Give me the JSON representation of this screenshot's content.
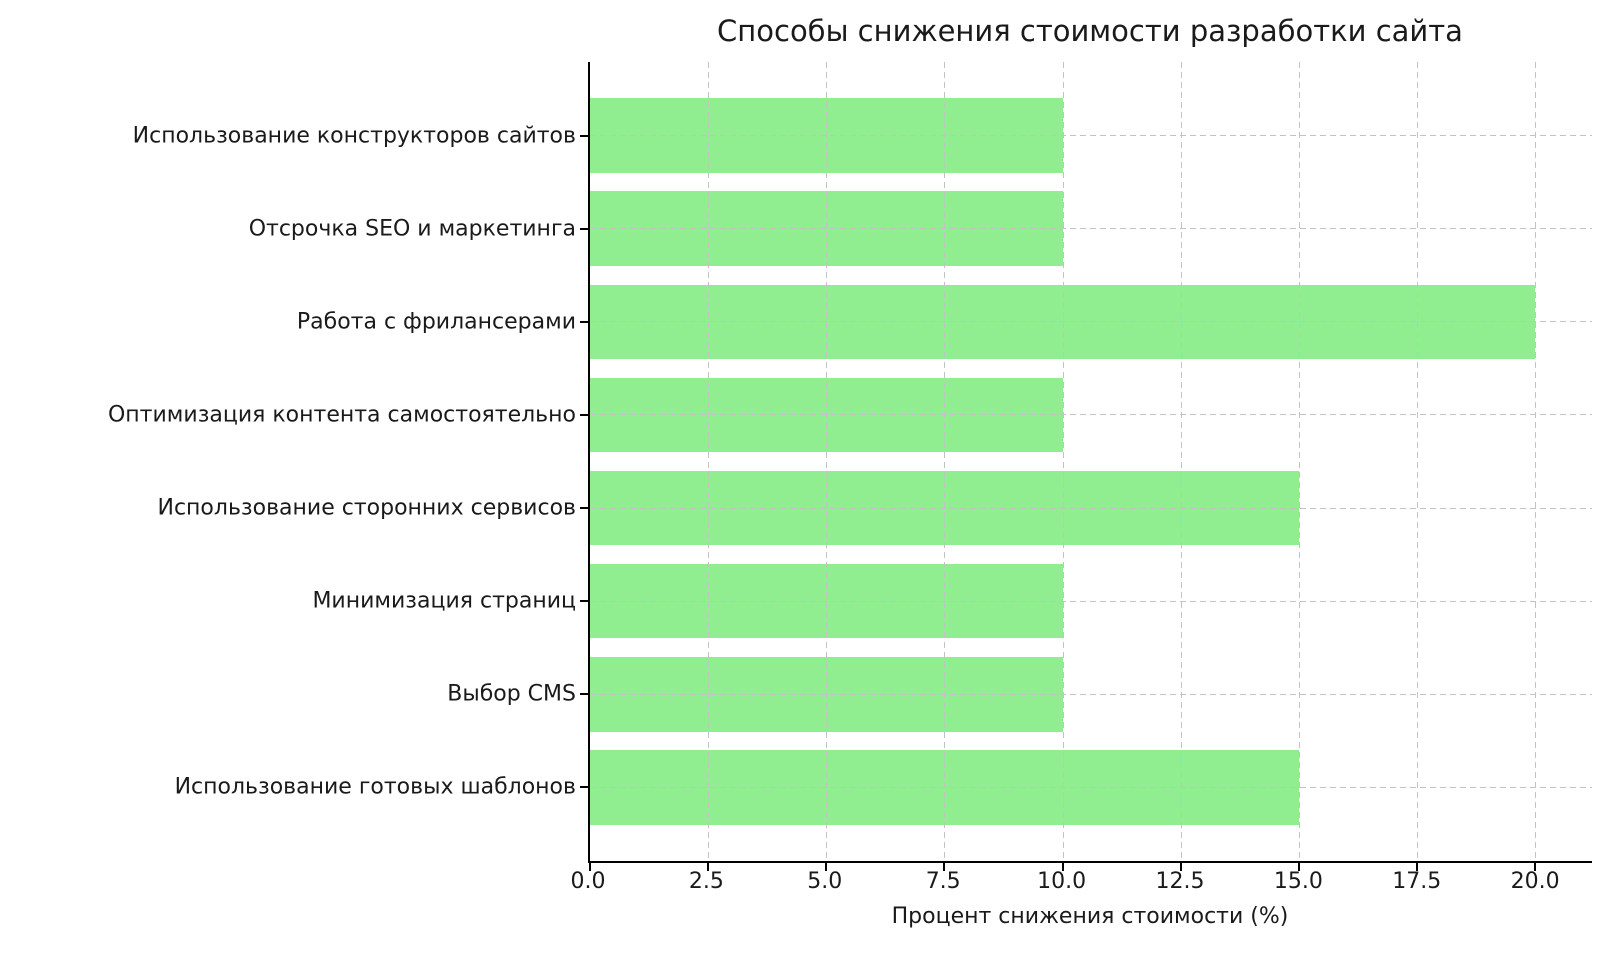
{
  "chart_data": {
    "type": "bar",
    "orientation": "horizontal",
    "title": "Способы снижения стоимости разработки сайта",
    "xlabel": "Процент снижения стоимости (%)",
    "ylabel": "",
    "categories": [
      "Использование конструкторов сайтов",
      "Отсрочка SEO и маркетинга",
      "Работа с фрилансерами",
      "Оптимизация контента самостоятельно",
      "Использование сторонних сервисов",
      "Минимизация страниц",
      "Выбор CMS",
      "Использование готовых шаблонов"
    ],
    "values": [
      10,
      10,
      20,
      10,
      15,
      10,
      10,
      15
    ],
    "xticks": [
      0.0,
      2.5,
      5.0,
      7.5,
      10.0,
      12.5,
      15.0,
      17.5,
      20.0
    ],
    "xtick_labels": [
      "0.0",
      "2.5",
      "5.0",
      "7.5",
      "10.0",
      "12.5",
      "15.0",
      "17.5",
      "20.0"
    ],
    "xlim": [
      0,
      21.2
    ],
    "grid": true,
    "grid_style": "dashed",
    "grid_position": "above-bars",
    "legend": "none",
    "colors": {
      "bar": "#90EE90",
      "grid": "#c3c3c3",
      "spine": "#000000",
      "text": "#1a1a1a"
    }
  }
}
